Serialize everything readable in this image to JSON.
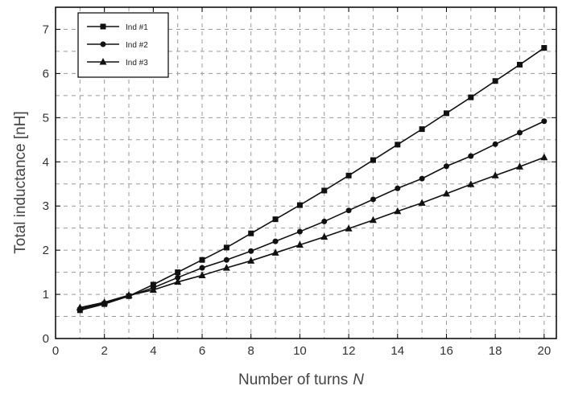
{
  "chart_data": {
    "type": "line",
    "title": "",
    "xlabel": "Number of turns",
    "xlabel_var": "N",
    "ylabel": "Total inductance [nH]",
    "xlim": [
      0,
      20.5
    ],
    "ylim": [
      0,
      7.5
    ],
    "xticks": [
      0,
      2,
      4,
      6,
      8,
      10,
      12,
      14,
      16,
      18,
      20
    ],
    "yticks": [
      0,
      1,
      2,
      3,
      4,
      5,
      6,
      7
    ],
    "grid": true,
    "legend_position": "top-left",
    "x": [
      1,
      2,
      3,
      4,
      5,
      6,
      7,
      8,
      9,
      10,
      11,
      12,
      13,
      14,
      15,
      16,
      17,
      18,
      19,
      20
    ],
    "series": [
      {
        "name": "Ind #1",
        "marker": "square",
        "values": [
          0.64,
          0.78,
          0.96,
          1.22,
          1.5,
          1.78,
          2.06,
          2.38,
          2.7,
          3.02,
          3.35,
          3.69,
          4.04,
          4.39,
          4.74,
          5.1,
          5.46,
          5.83,
          6.2,
          6.58
        ]
      },
      {
        "name": "Ind #2",
        "marker": "circle",
        "values": [
          0.67,
          0.8,
          0.96,
          1.15,
          1.38,
          1.6,
          1.78,
          1.98,
          2.2,
          2.42,
          2.65,
          2.9,
          3.15,
          3.4,
          3.62,
          3.9,
          4.13,
          4.4,
          4.66,
          4.92
        ]
      },
      {
        "name": "Ind #3",
        "marker": "triangle",
        "values": [
          0.7,
          0.82,
          0.98,
          1.1,
          1.28,
          1.43,
          1.6,
          1.76,
          1.94,
          2.12,
          2.3,
          2.49,
          2.68,
          2.88,
          3.07,
          3.28,
          3.49,
          3.69,
          3.89,
          4.1
        ]
      }
    ],
    "colors": {
      "line": "#111111",
      "grid": "#9a9a9a",
      "frame": "#000000",
      "text": "#333333"
    }
  }
}
